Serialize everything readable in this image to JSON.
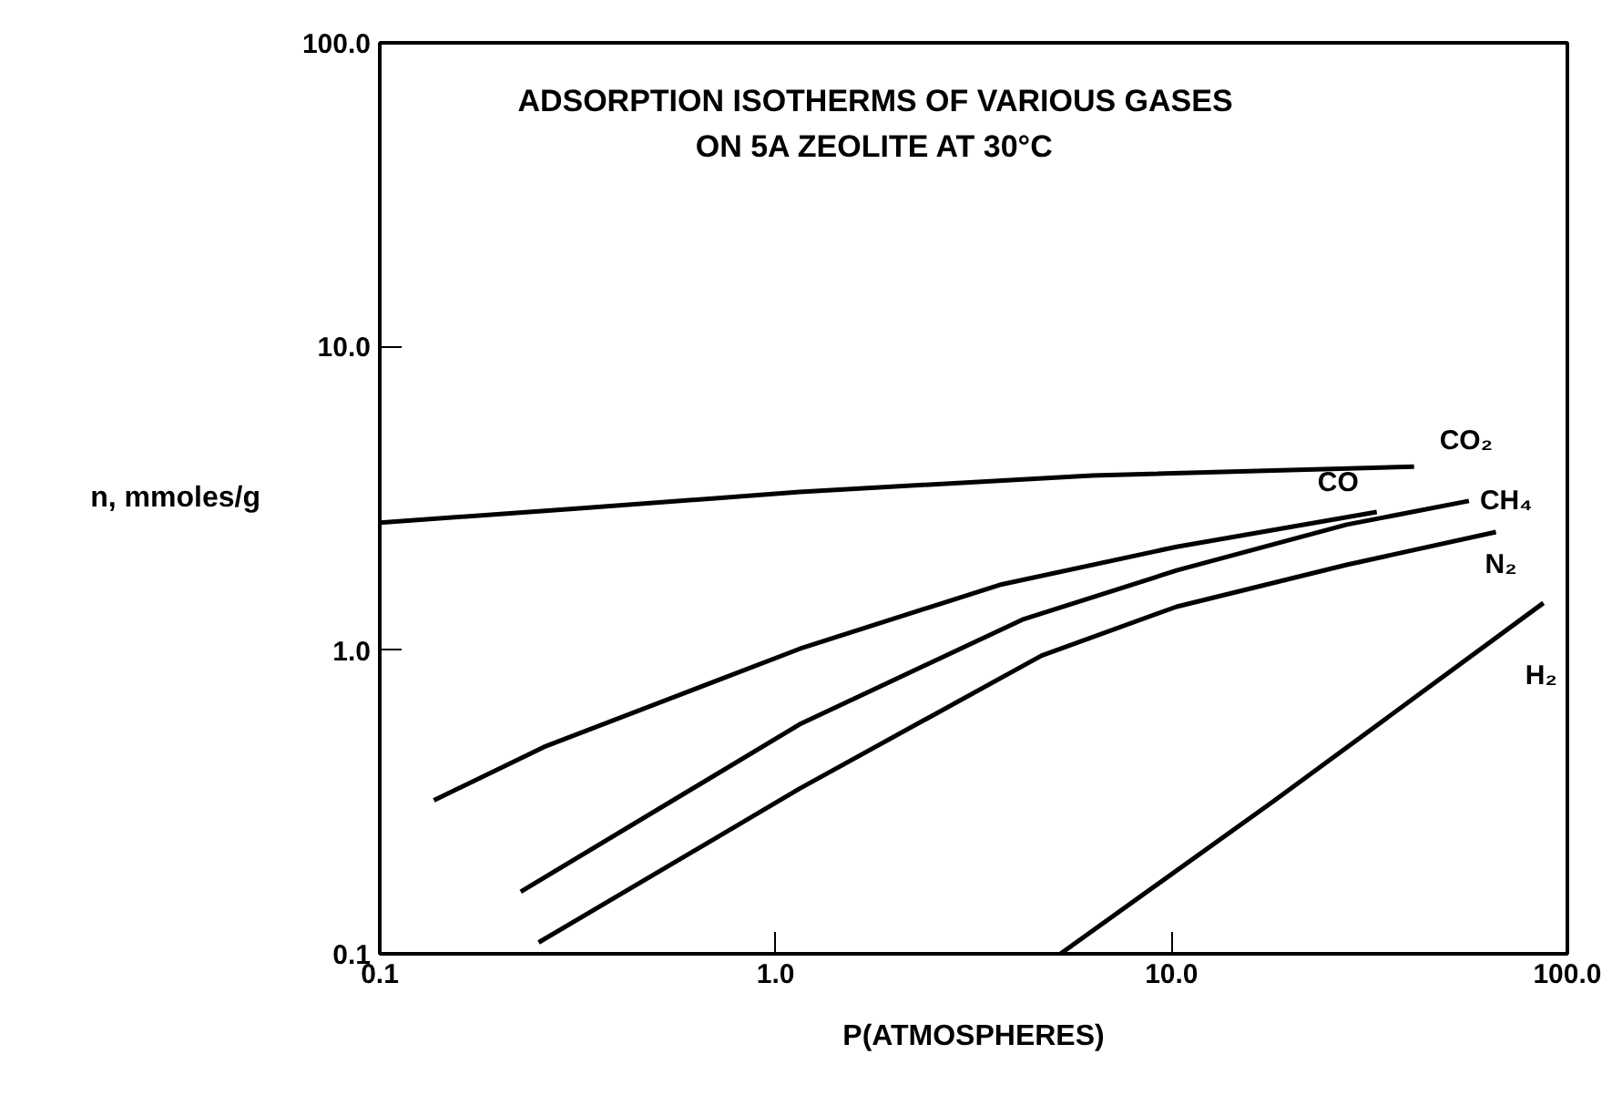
{
  "chart_data": {
    "type": "line",
    "title": "ADSORPTION ISOTHERMS OF VARIOUS GASES\nON 5A ZEOLITE AT 30°C",
    "xlabel": "P(ATMOSPHERES)",
    "ylabel": "n, mmoles/g",
    "log": "xy",
    "grid": false,
    "marker": "none",
    "line_style": "solid",
    "xlim": [
      0.1,
      100
    ],
    "ylim": [
      0.1,
      100
    ],
    "xticks": [
      {
        "value": 0.1,
        "label": "0.1"
      },
      {
        "value": 1,
        "label": "1.0"
      },
      {
        "value": 10,
        "label": "10.0"
      },
      {
        "value": 100,
        "label": "100.0"
      }
    ],
    "yticks": [
      {
        "value": 0.1,
        "label": "0.1"
      },
      {
        "value": 1,
        "label": "1.0"
      },
      {
        "value": 10,
        "label": "10.0"
      },
      {
        "value": 100,
        "label": "100.0"
      }
    ],
    "series": [
      {
        "name": "CO₂",
        "color": "#000000",
        "x": [
          0.1,
          0.32,
          1.15,
          6.3,
          41
        ],
        "values": [
          2.63,
          2.93,
          3.32,
          3.76,
          4.02
        ]
      },
      {
        "name": "CO",
        "color": "#000000",
        "x": [
          0.137,
          0.26,
          1.15,
          3.68,
          10.3,
          33
        ],
        "values": [
          0.32,
          0.48,
          1.01,
          1.64,
          2.19,
          2.85
        ]
      },
      {
        "name": "CH₄",
        "color": "#000000",
        "x": [
          0.227,
          1.15,
          4.2,
          10.3,
          27.7,
          56.4
        ],
        "values": [
          0.16,
          0.57,
          1.26,
          1.83,
          2.59,
          3.1
        ]
      },
      {
        "name": "N₂",
        "color": "#000000",
        "x": [
          0.252,
          1.15,
          4.7,
          10.3,
          27.7,
          66
        ],
        "values": [
          0.109,
          0.35,
          0.96,
          1.39,
          1.91,
          2.45
        ]
      },
      {
        "name": "H₂",
        "color": "#000000",
        "x": [
          5.24,
          18.1,
          87
        ],
        "values": [
          0.1,
          0.318,
          1.43
        ]
      }
    ]
  }
}
